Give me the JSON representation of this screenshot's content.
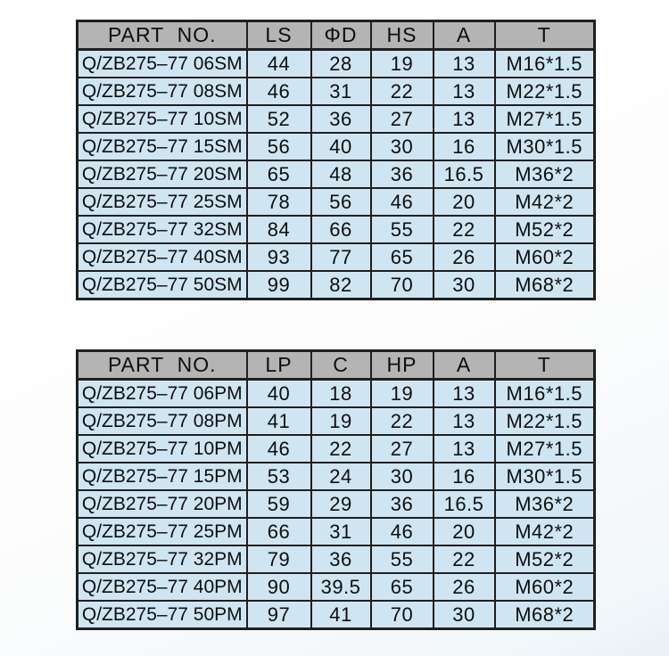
{
  "page": {
    "kind": "scanned parts specification sheet"
  },
  "colors": {
    "header_bg": "#b4b4b4",
    "row_bg": "#cfe5f2",
    "border": "#1f1f1f",
    "text": "#0e0e0e"
  },
  "tables": [
    {
      "name": "sm-series-dimensions",
      "headers": [
        "PART  NO.",
        "LS",
        "ΦD",
        "HS",
        "A",
        "T"
      ],
      "rows": [
        [
          "Q/ZB275–77 06SM",
          "44",
          "28",
          "19",
          "13",
          "M16*1.5"
        ],
        [
          "Q/ZB275–77 08SM",
          "46",
          "31",
          "22",
          "13",
          "M22*1.5"
        ],
        [
          "Q/ZB275–77 10SM",
          "52",
          "36",
          "27",
          "13",
          "M27*1.5"
        ],
        [
          "Q/ZB275–77 15SM",
          "56",
          "40",
          "30",
          "16",
          "M30*1.5"
        ],
        [
          "Q/ZB275–77 20SM",
          "65",
          "48",
          "36",
          "16.5",
          "M36*2"
        ],
        [
          "Q/ZB275–77 25SM",
          "78",
          "56",
          "46",
          "20",
          "M42*2"
        ],
        [
          "Q/ZB275–77 32SM",
          "84",
          "66",
          "55",
          "22",
          "M52*2"
        ],
        [
          "Q/ZB275–77 40SM",
          "93",
          "77",
          "65",
          "26",
          "M60*2"
        ],
        [
          "Q/ZB275–77 50SM",
          "99",
          "82",
          "70",
          "30",
          "M68*2"
        ]
      ]
    },
    {
      "name": "pm-series-dimensions",
      "headers": [
        "PART  NO.",
        "LP",
        "C",
        "HP",
        "A",
        "T"
      ],
      "rows": [
        [
          "Q/ZB275–77 06PM",
          "40",
          "18",
          "19",
          "13",
          "M16*1.5"
        ],
        [
          "Q/ZB275–77 08PM",
          "41",
          "19",
          "22",
          "13",
          "M22*1.5"
        ],
        [
          "Q/ZB275–77 10PM",
          "46",
          "22",
          "27",
          "13",
          "M27*1.5"
        ],
        [
          "Q/ZB275–77 15PM",
          "53",
          "24",
          "30",
          "16",
          "M30*1.5"
        ],
        [
          "Q/ZB275–77 20PM",
          "59",
          "29",
          "36",
          "16.5",
          "M36*2"
        ],
        [
          "Q/ZB275–77 25PM",
          "66",
          "31",
          "46",
          "20",
          "M42*2"
        ],
        [
          "Q/ZB275–77 32PM",
          "79",
          "36",
          "55",
          "22",
          "M52*2"
        ],
        [
          "Q/ZB275–77 40PM",
          "90",
          "39.5",
          "65",
          "26",
          "M60*2"
        ],
        [
          "Q/ZB275–77 50PM",
          "97",
          "41",
          "70",
          "30",
          "M68*2"
        ]
      ]
    }
  ]
}
